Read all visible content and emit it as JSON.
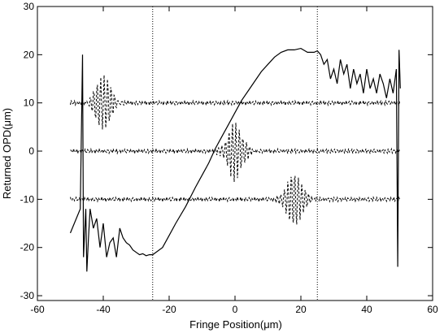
{
  "chart_data": {
    "type": "line",
    "title": "",
    "xlabel": "Fringe Position(μm)",
    "ylabel": "Returned OPD(μm)",
    "xlim": [
      -60,
      60
    ],
    "ylim": [
      -31,
      30
    ],
    "xticks": [
      -60,
      -40,
      -20,
      0,
      20,
      40,
      60
    ],
    "yticks": [
      -30,
      -20,
      -10,
      0,
      10,
      20,
      30
    ],
    "xtick_labels": [
      "-60",
      "-40",
      "-20",
      "0",
      "20",
      "40",
      "60"
    ],
    "ytick_labels": [
      "-30",
      "-20",
      "-10",
      "0",
      "10",
      "20",
      "30"
    ],
    "grid": false,
    "reference_lines_x": [
      -25,
      25
    ],
    "series": [
      {
        "style": "solid",
        "x": [
          -50,
          -47,
          -46.3,
          -46,
          -45.3,
          -45,
          -44.5,
          -44,
          -43,
          -42,
          -41,
          -40,
          -39,
          -38,
          -37,
          -36,
          -35,
          -34,
          -33,
          -32,
          -31,
          -30,
          -29,
          -28,
          -27,
          -26,
          -25,
          -22,
          -20,
          -18,
          -15,
          -12,
          -10,
          -8,
          -6,
          -4,
          -2,
          0,
          2,
          4,
          6,
          8,
          10,
          12,
          14,
          16,
          18,
          20,
          22,
          24,
          25,
          26,
          27,
          28,
          29,
          30,
          31,
          32,
          33,
          34,
          35,
          36,
          37,
          38,
          39,
          40,
          41,
          42,
          43,
          44,
          45,
          46,
          47,
          48,
          49,
          49.4,
          49.8,
          50.2
        ],
        "y": [
          -17,
          -12,
          20,
          -22,
          -12,
          -25,
          -18,
          -12,
          -16,
          -14,
          -20,
          -15,
          -22,
          -19,
          -18,
          -22,
          -16,
          -18,
          -19,
          -19.5,
          -20.5,
          -21,
          -21.5,
          -21.3,
          -21.7,
          -21.5,
          -21.5,
          -20,
          -17.5,
          -15,
          -11.5,
          -7.5,
          -5,
          -2.5,
          0.5,
          3,
          5.5,
          8,
          10.5,
          12.5,
          14.5,
          16.5,
          18,
          19.5,
          20.5,
          21,
          21,
          21.3,
          20.5,
          20.5,
          20.8,
          20,
          18,
          19,
          15,
          17,
          14,
          19,
          16,
          18,
          13,
          17,
          14,
          16,
          12,
          17,
          13,
          15,
          12,
          16,
          14,
          11,
          15,
          12,
          17,
          -24,
          21,
          13
        ]
      },
      {
        "style": "dashed",
        "offset": 10,
        "packet_center": -40,
        "packet_amplitude": 6,
        "x_range": [
          -50,
          50
        ]
      },
      {
        "style": "dashed",
        "offset": 0,
        "packet_center": 0,
        "packet_amplitude": 6,
        "x_range": [
          -50,
          50
        ]
      },
      {
        "style": "dashed",
        "offset": -10,
        "packet_center": 18,
        "packet_amplitude": 6,
        "x_range": [
          -50,
          50
        ]
      }
    ]
  }
}
